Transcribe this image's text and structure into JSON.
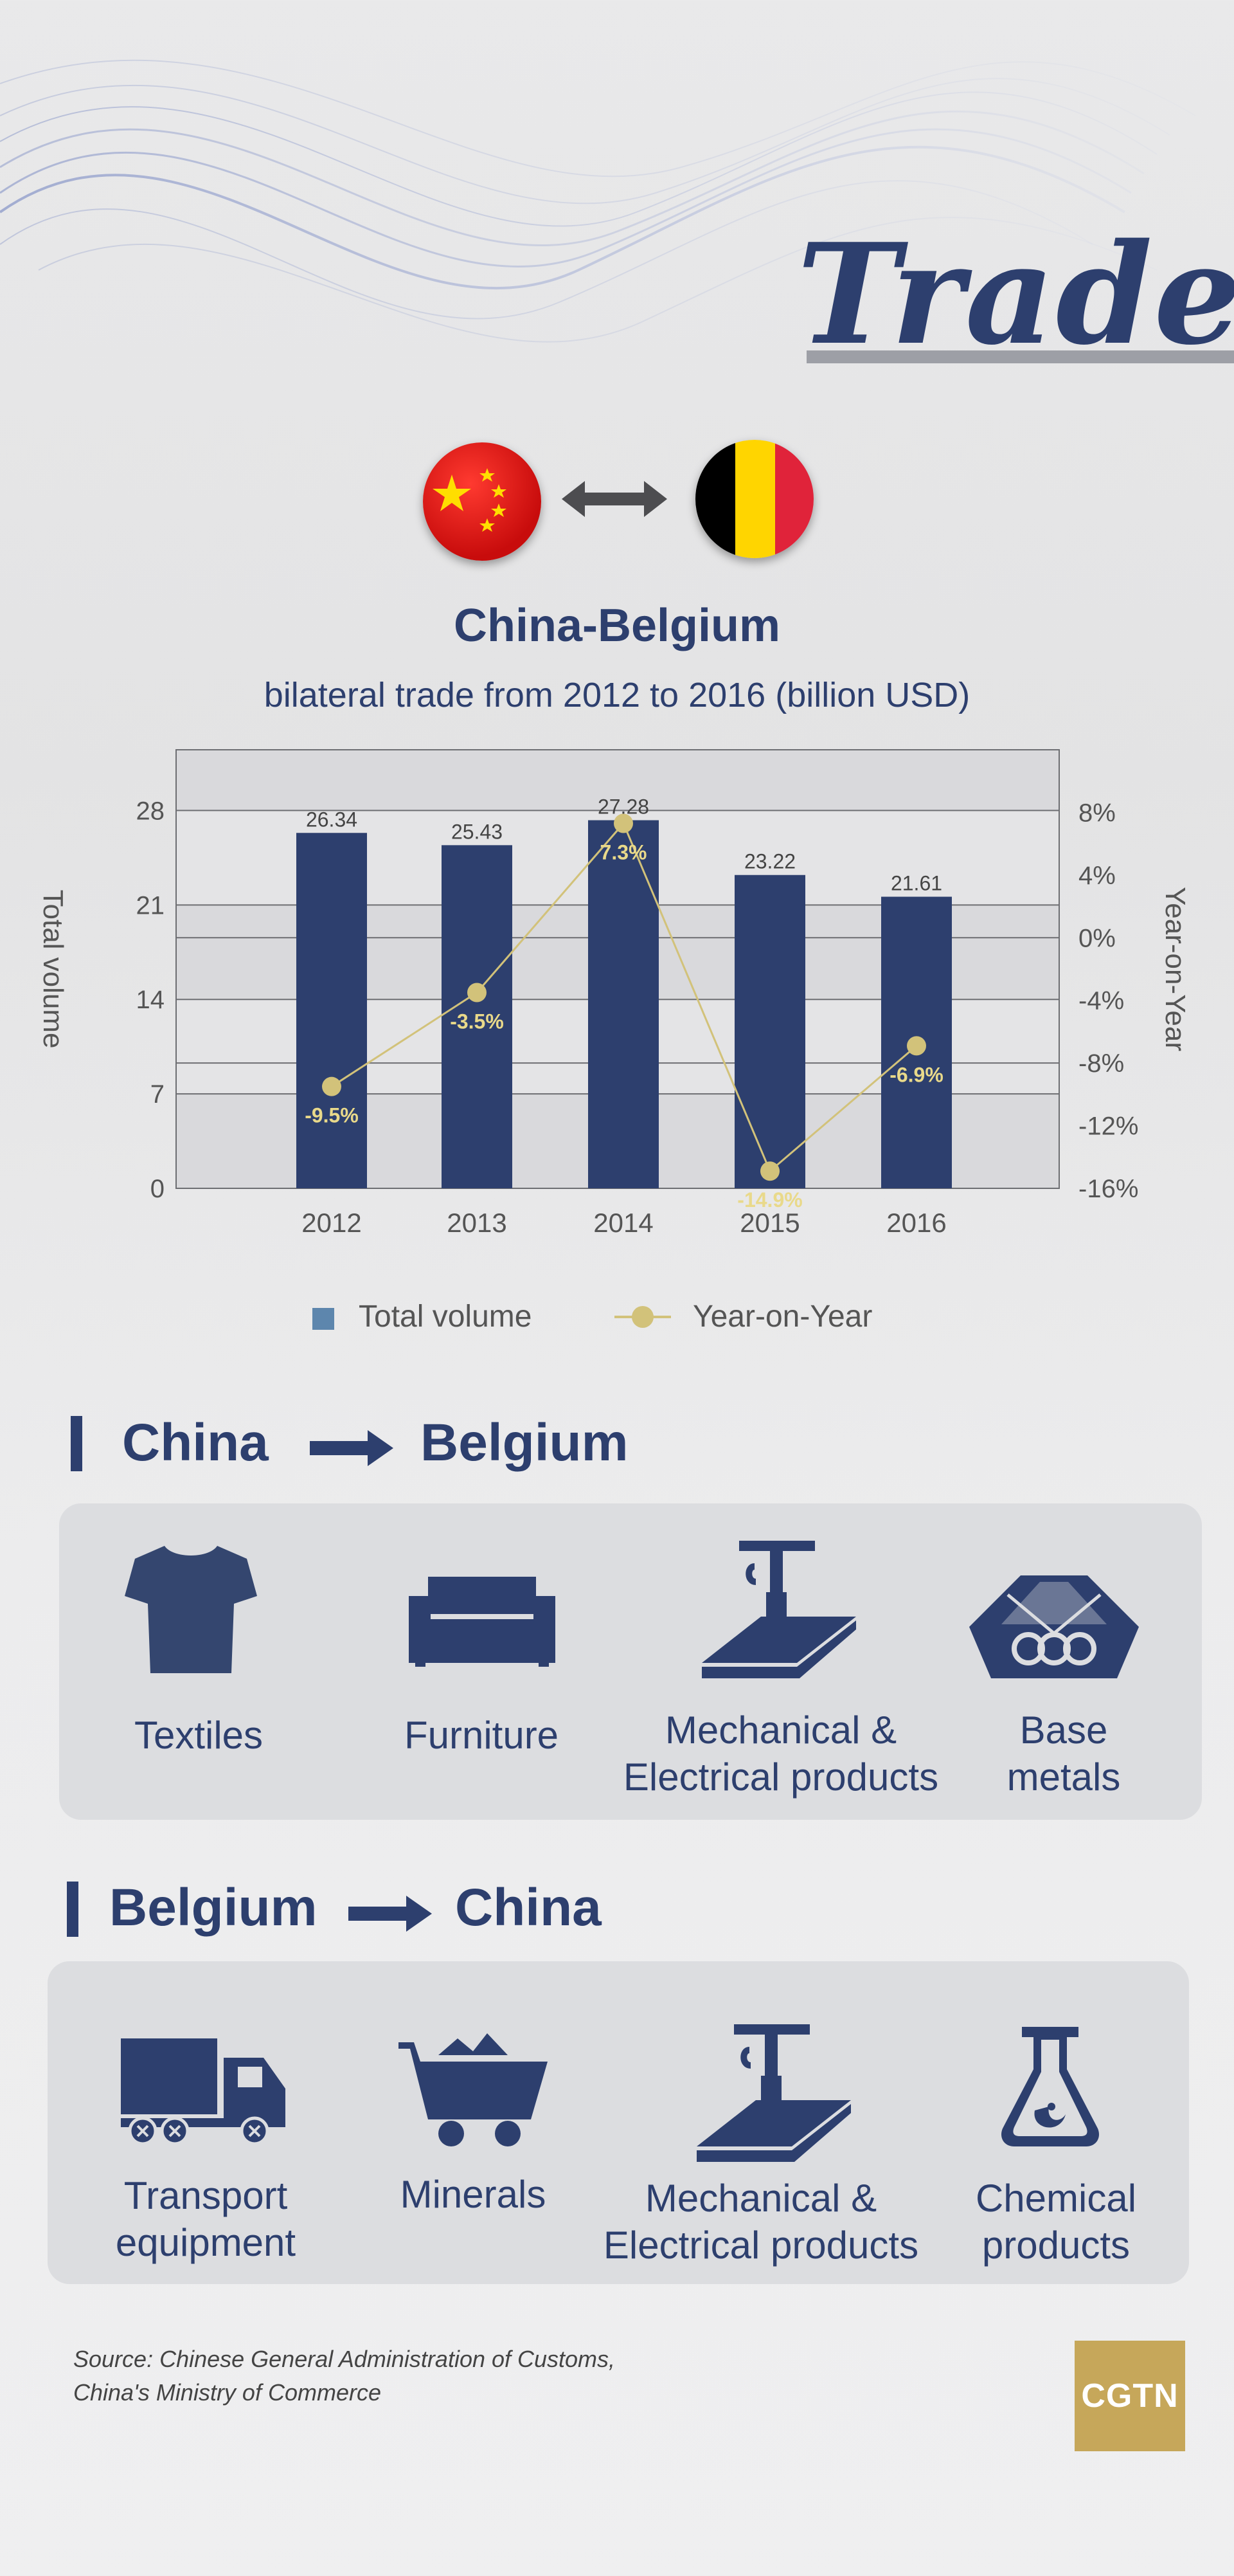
{
  "page": {
    "title": "Trade"
  },
  "flags": {
    "left": "China flag",
    "right": "Belgium flag"
  },
  "chart_data": {
    "type": "bar",
    "title": "China-Belgium",
    "subtitle": "bilateral trade from 2012 to 2016 (billion USD)",
    "categories": [
      "2012",
      "2013",
      "2014",
      "2015",
      "2016"
    ],
    "series": [
      {
        "name": "Total volume",
        "type": "bar",
        "axis": "left",
        "values": [
          26.34,
          25.43,
          27.28,
          23.22,
          21.61
        ],
        "color": "#2d3f6e"
      },
      {
        "name": "Year-on-Year",
        "type": "line",
        "axis": "right",
        "values": [
          -9.5,
          -3.5,
          7.3,
          -14.9,
          -6.9
        ],
        "color": "#d2c27a"
      }
    ],
    "bar_labels": [
      "26.34",
      "25.43",
      "27.28",
      "23.22",
      "21.61"
    ],
    "line_labels": [
      "-9.5%",
      "-3.5%",
      "7.3%",
      "-14.9%",
      "-6.9%"
    ],
    "ylabel": "Total volume",
    "y2label": "Year-on-Year",
    "ylim": [
      0,
      32.5
    ],
    "yticks": [
      "0",
      "7",
      "14",
      "21",
      "28"
    ],
    "yticks_values": [
      0,
      7,
      14,
      21,
      28
    ],
    "y2lim": [
      -16,
      12
    ],
    "y2ticks": [
      "8%",
      "4%",
      "0%",
      "-4%",
      "-8%",
      "-12%",
      "-16%"
    ],
    "y2ticks_values": [
      8,
      4,
      0,
      -4,
      -8,
      -12,
      -16
    ],
    "grid": true,
    "legend_position": "bottom"
  },
  "legend": {
    "bar": "Total volume",
    "line": "Year-on-Year"
  },
  "section1": {
    "from": "China",
    "to": "Belgium",
    "items": [
      {
        "icon": "tshirt-icon",
        "label": "Textiles"
      },
      {
        "icon": "sofa-icon",
        "label": "Furniture"
      },
      {
        "icon": "drill-machine-icon",
        "label": "Mechanical &\nElectrical products"
      },
      {
        "icon": "steel-pipes-icon",
        "label": "Base\nmetals"
      }
    ]
  },
  "section2": {
    "from": "Belgium",
    "to": "China",
    "items": [
      {
        "icon": "truck-icon",
        "label": "Transport\nequipment"
      },
      {
        "icon": "mine-cart-icon",
        "label": "Minerals"
      },
      {
        "icon": "drill-machine-icon",
        "label": "Mechanical &\nElectrical products"
      },
      {
        "icon": "flask-icon",
        "label": "Chemical\nproducts"
      }
    ]
  },
  "footer": {
    "source_line1": "Source: Chinese General Administration of Customs,",
    "source_line2": "China's Ministry of Commerce",
    "logo": "CGTN"
  },
  "colors": {
    "primary": "#2d3f6e",
    "accent": "#d2c27a",
    "logo_bg": "#c6a75a"
  }
}
